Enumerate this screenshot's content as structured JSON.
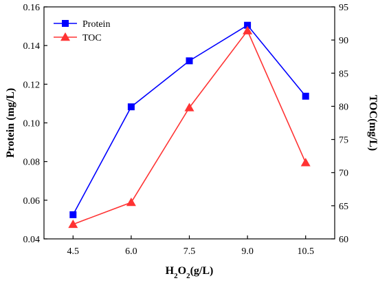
{
  "chart_data": {
    "type": "line",
    "x": [
      4.5,
      6.0,
      7.5,
      9.0,
      10.5
    ],
    "x_tick_labels": [
      "4.5",
      "6.0",
      "7.5",
      "9.0",
      "10.5"
    ],
    "xlabel_parts": [
      {
        "text": "H",
        "sub": false
      },
      {
        "text": "2",
        "sub": true
      },
      {
        "text": "O",
        "sub": false
      },
      {
        "text": "2",
        "sub": true
      },
      {
        "text": "(g/L)",
        "sub": false
      }
    ],
    "ylabel_left": "Protein (mg/L)",
    "ylabel_right": "TOC(mg/L)",
    "ylim_left": [
      0.04,
      0.16
    ],
    "ylim_right": [
      60,
      95
    ],
    "y_ticks_left": [
      "0.04",
      "0.06",
      "0.08",
      "0.10",
      "0.12",
      "0.14",
      "0.16"
    ],
    "y_ticks_right": [
      "60",
      "65",
      "70",
      "75",
      "80",
      "85",
      "90",
      "95"
    ],
    "grid": false,
    "legend_position": "top-left",
    "series": [
      {
        "name": "Protein",
        "axis": "left",
        "marker": "square",
        "color": "#0000ff",
        "values": [
          0.0525,
          0.1083,
          0.1321,
          0.1505,
          0.1138
        ]
      },
      {
        "name": "TOC",
        "axis": "right",
        "marker": "triangle",
        "color": "#ff3333",
        "values": [
          62.2,
          65.5,
          79.8,
          91.4,
          71.5
        ]
      }
    ]
  }
}
